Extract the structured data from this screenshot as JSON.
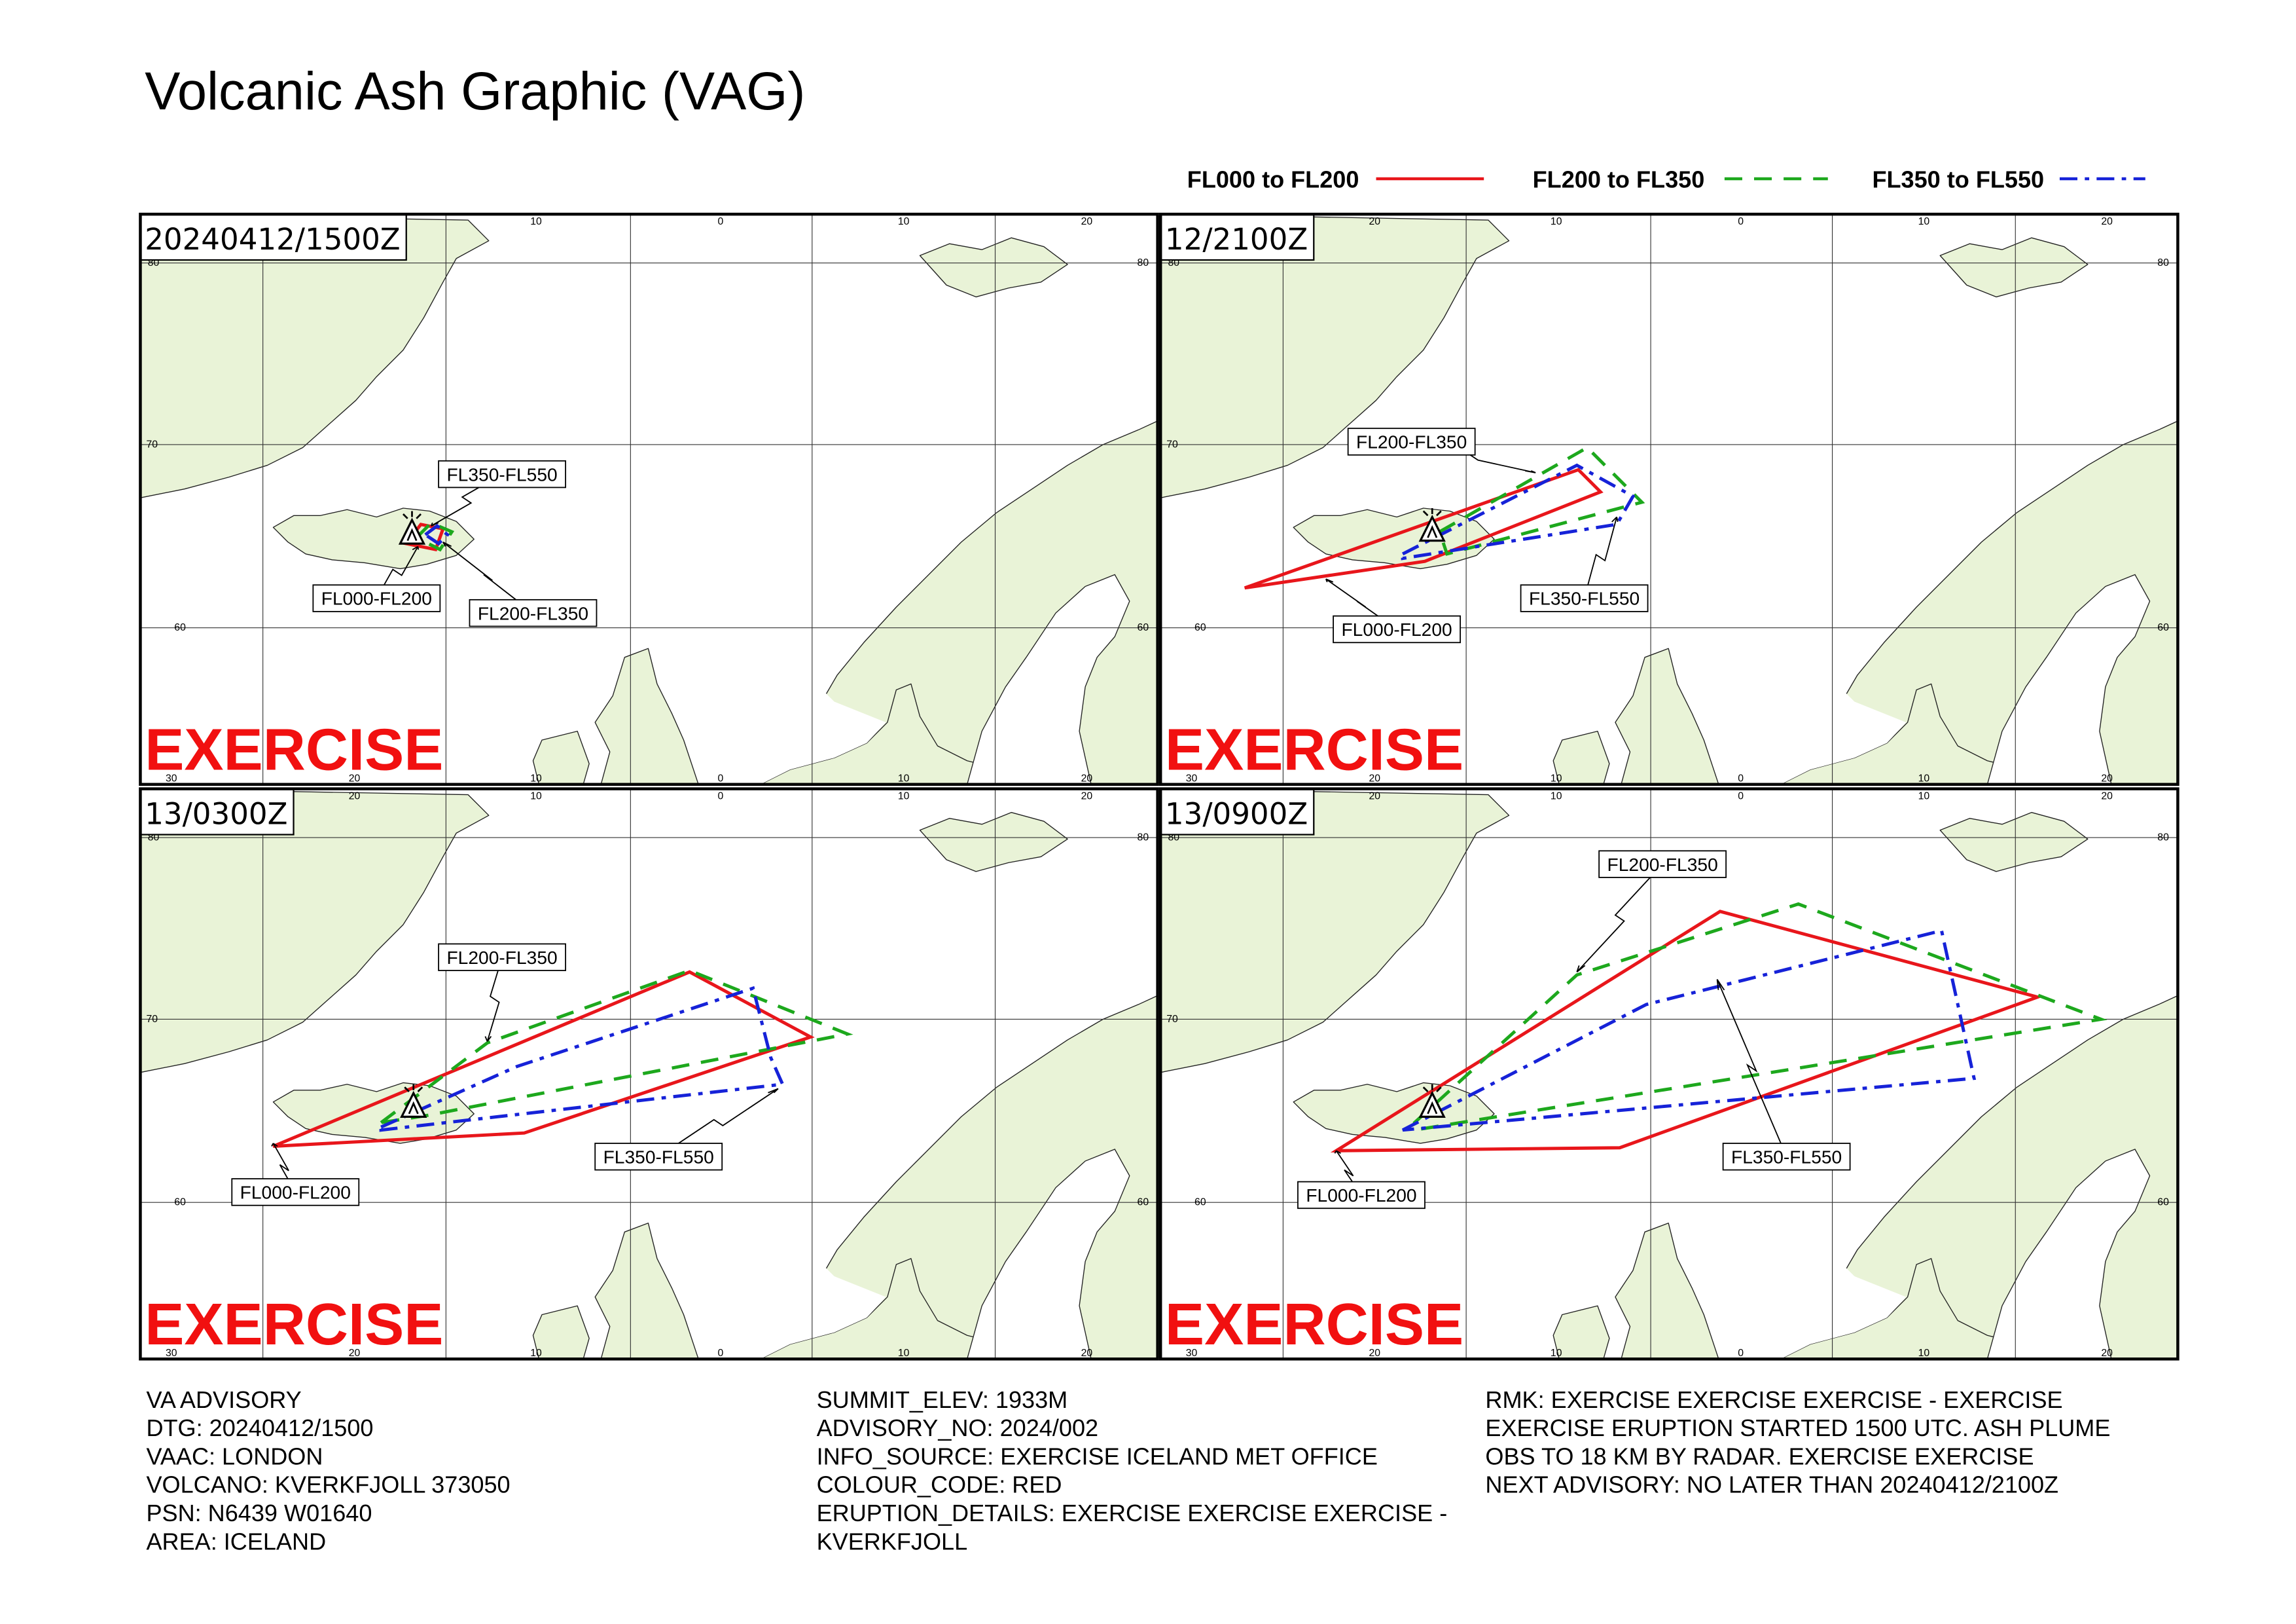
{
  "title": "Volcanic Ash Graphic (VAG)",
  "legend": [
    {
      "name": "FL000 to FL200",
      "color": "#e8161b"
    },
    {
      "name": "FL200 to FL350",
      "color": "#1da81d"
    },
    {
      "name": "FL350 to FL550",
      "color": "#1622d8"
    }
  ],
  "map_labels": {
    "top": [
      "20",
      "10",
      "0",
      "10",
      "20"
    ],
    "bottom": [
      "30",
      "20",
      "10",
      "0",
      "10",
      "20"
    ],
    "left": [
      "80",
      "70",
      "60"
    ],
    "right": [
      "80",
      "60"
    ]
  },
  "panels": [
    {
      "time": "20240412/1500Z",
      "labels": [
        "FL000-FL200",
        "FL200-FL350",
        "FL350-FL550"
      ],
      "watermark": "EXERCISE"
    },
    {
      "time": "12/2100Z",
      "labels": [
        "FL000-FL200",
        "FL200-FL350",
        "FL350-FL550"
      ],
      "watermark": "EXERCISE"
    },
    {
      "time": "13/0300Z",
      "labels": [
        "FL000-FL200",
        "FL200-FL350",
        "FL350-FL550"
      ],
      "watermark": "EXERCISE"
    },
    {
      "time": "13/0900Z",
      "labels": [
        "FL000-FL200",
        "FL200-FL350",
        "FL350-FL550"
      ],
      "watermark": "EXERCISE"
    }
  ],
  "advisory": {
    "col1": [
      "VA ADVISORY",
      "DTG: 20240412/1500",
      "VAAC: LONDON",
      "VOLCANO: KVERKFJOLL 373050",
      "PSN: N6439 W01640",
      "AREA: ICELAND"
    ],
    "col2": [
      "SUMMIT_ELEV: 1933M",
      "ADVISORY_NO: 2024/002",
      "INFO_SOURCE: EXERCISE ICELAND MET OFFICE",
      "COLOUR_CODE: RED",
      "ERUPTION_DETAILS: EXERCISE EXERCISE EXERCISE -",
      "KVERKFJOLL"
    ],
    "col3": [
      "RMK: EXERCISE EXERCISE EXERCISE - EXERCISE",
      "EXERCISE ERUPTION STARTED 1500 UTC. ASH PLUME",
      "OBS TO 18 KM BY RADAR. EXERCISE EXERCISE",
      "NEXT ADVISORY: NO LATER THAN 20240412/2100Z"
    ]
  }
}
